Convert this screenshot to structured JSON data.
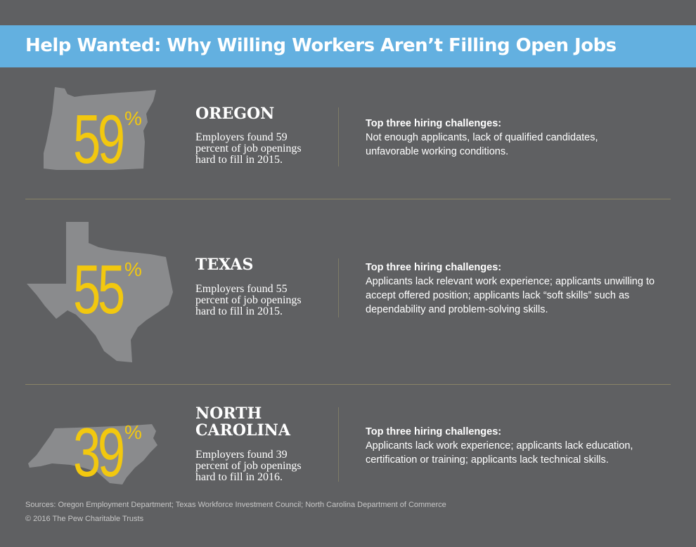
{
  "header": {
    "title": "Help Wanted: Why Willing Workers Aren’t Filling Open Jobs"
  },
  "states": [
    {
      "name": "OREGON",
      "percent": "59",
      "percent_sign": "%",
      "description": "Employers found 59 percent of job openings hard to fill in 2015.",
      "challenges_heading": "Top three hiring challenges:",
      "challenges": "Not enough applicants, lack of qualified candidates, unfavorable working conditions."
    },
    {
      "name": "TEXAS",
      "percent": "55",
      "percent_sign": "%",
      "description": "Employers found 55 percent of job openings hard to fill in 2015.",
      "challenges_heading": "Top three hiring challenges:",
      "challenges": "Applicants lack relevant work experience; applicants unwilling to accept offered position; applicants lack “soft skills” such as dependability and problem-solving skills."
    },
    {
      "name": "NORTH\nCAROLINA",
      "percent": "39",
      "percent_sign": "%",
      "description": "Employers found 39 percent of job openings hard to fill in 2016.",
      "challenges_heading": "Top three hiring challenges:",
      "challenges": "Applicants lack work experience; applicants lack education, certification or training; applicants lack technical skills."
    }
  ],
  "footer": {
    "sources": "Sources: Oregon Employment Department; Texas Workforce Investment Council; North Carolina Department of Commerce",
    "copyright": "© 2016 The Pew Charitable Trusts"
  },
  "colors": {
    "header_bg": "#63b0e0",
    "accent": "#f2c80f",
    "background": "#5f6062",
    "map_fill": "#8a8b8d"
  }
}
